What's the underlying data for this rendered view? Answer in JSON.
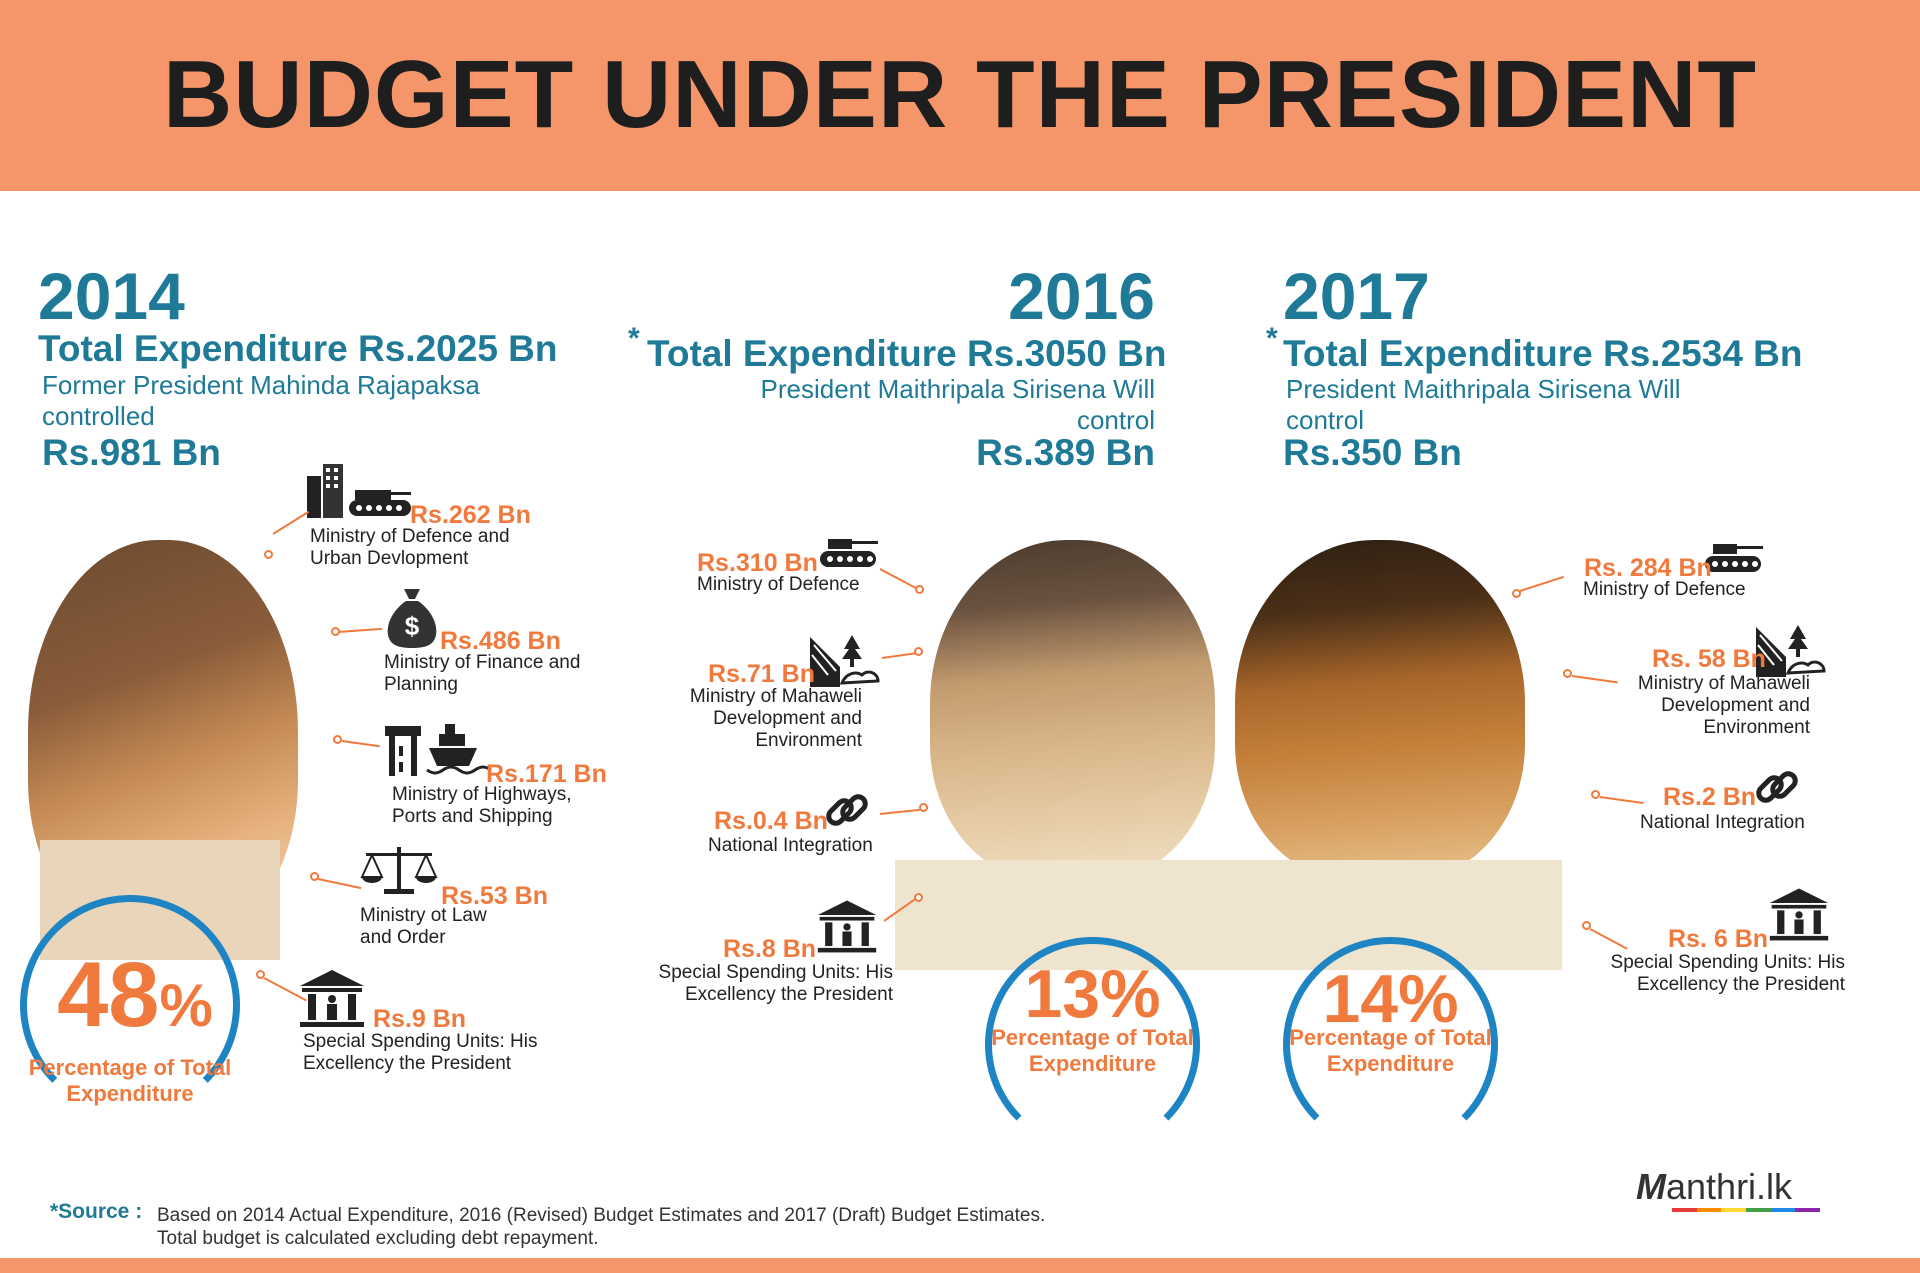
{
  "title": "BUDGET UNDER THE PRESIDENT",
  "y2014": {
    "year": "2014",
    "total": "Total Expenditure Rs.2025 Bn",
    "controller": "Former President Mahinda Rajapaksa controlled",
    "controlled": "Rs.981 Bn",
    "percent": "48",
    "percent_sign": "%",
    "percent_label": "Percentage of Total Expenditure",
    "items": [
      {
        "amount": "Rs.262 Bn",
        "name": "Ministry of Defence and Urban Devlopment",
        "icon": "defence-urban-icon"
      },
      {
        "amount": "Rs.486 Bn",
        "name": "Ministry of Finance and Planning",
        "icon": "money-bag-icon"
      },
      {
        "amount": "Rs.171 Bn",
        "name": "Ministry of Highways, Ports and Shipping",
        "icon": "highway-ship-icon"
      },
      {
        "amount": "Rs.53 Bn",
        "name": "Ministry ot Law and Order",
        "icon": "scales-icon"
      },
      {
        "amount": "Rs.9 Bn",
        "name": "Special Spending Units: His Excellency the President",
        "icon": "institution-icon"
      }
    ]
  },
  "y2016": {
    "year": "2016",
    "star": "*",
    "total": "Total Expenditure Rs.3050 Bn",
    "controller": "President Maithripala Sirisena Will control",
    "controlled": "Rs.389 Bn",
    "percent": "13%",
    "percent_label": "Percentage of Total Expenditure",
    "items": [
      {
        "amount": "Rs.310 Bn",
        "name": "Ministry of Defence",
        "icon": "tank-icon"
      },
      {
        "amount": "Rs.71 Bn",
        "name": "Ministry of Mahaweli Development and Environment",
        "icon": "landscape-icon"
      },
      {
        "amount": "Rs.0.4 Bn",
        "name": "National Integration",
        "icon": "chain-link-icon"
      },
      {
        "amount": "Rs.8 Bn",
        "name": "Special Spending Units: His Excellency the President",
        "icon": "institution-icon"
      }
    ]
  },
  "y2017": {
    "year": "2017",
    "star": "*",
    "total": "Total Expenditure Rs.2534 Bn",
    "controller": "President Maithripala Sirisena Will control",
    "controlled": "Rs.350 Bn",
    "percent": "14%",
    "percent_label": "Percentage of Total Expenditure",
    "items": [
      {
        "amount": "Rs. 284 Bn",
        "name": "Ministry of Defence",
        "icon": "tank-icon"
      },
      {
        "amount": "Rs. 58 Bn",
        "name": "Ministry of Mahaweli Development and Environment",
        "icon": "landscape-icon"
      },
      {
        "amount": "Rs.2 Bn",
        "name": "National Integration",
        "icon": "chain-link-icon"
      },
      {
        "amount": "Rs. 6 Bn",
        "name": "Special Spending Units: His Excellency the President",
        "icon": "institution-icon"
      }
    ]
  },
  "footer": {
    "source_label": "*Source :",
    "source_line1": "Based on 2014 Actual Expenditure, 2016 (Revised) Budget Estimates and 2017 (Draft) Budget Estimates.",
    "source_line2": "Total budget is calculated excluding debt repayment.",
    "logo_text": "anthri.lk",
    "logo_mark": "M"
  },
  "colors": {
    "header": "#f5956a",
    "blue": "#1e7a96",
    "orange": "#f07a3e",
    "ring": "#1e84c3"
  }
}
